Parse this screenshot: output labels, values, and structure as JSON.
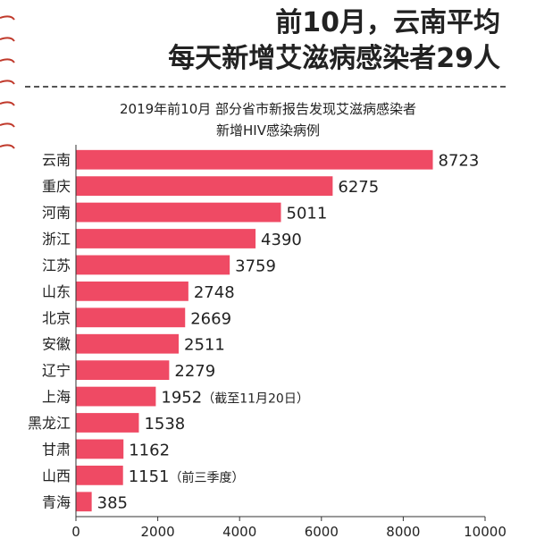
{
  "headline": {
    "line1": "前10月，云南平均",
    "line2": "每天新增艾滋病感染者29人"
  },
  "chart_data": {
    "type": "bar",
    "orientation": "horizontal",
    "title": "2019年前10月 部分省市新报告发现艾滋病感染者",
    "subtitle": "新增HIV感染病例",
    "categories": [
      "云南",
      "重庆",
      "河南",
      "浙江",
      "江苏",
      "山东",
      "北京",
      "安徽",
      "辽宁",
      "上海",
      "黑龙江",
      "甘肃",
      "山西",
      "青海"
    ],
    "values": [
      8723,
      6275,
      5011,
      4390,
      3759,
      2748,
      2669,
      2511,
      2279,
      1952,
      1538,
      1162,
      1151,
      385
    ],
    "annotations": [
      "",
      "",
      "",
      "",
      "",
      "",
      "",
      "",
      "",
      "（截至11月20日）",
      "",
      "",
      "（前三季度）",
      ""
    ],
    "xlim": [
      0,
      10000
    ],
    "xticks": [
      0,
      2000,
      4000,
      6000,
      8000,
      10000
    ],
    "bar_color": "#ef4a64",
    "grid": false
  }
}
